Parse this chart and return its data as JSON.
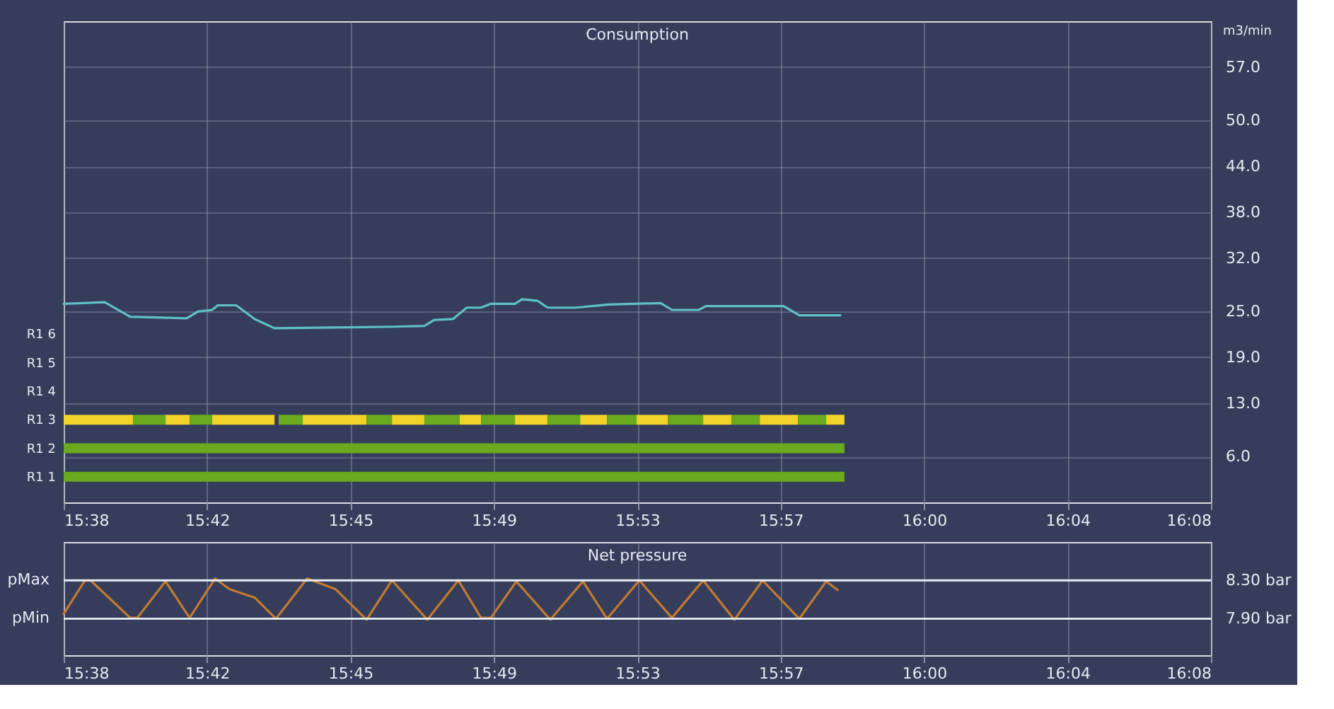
{
  "chart_data": [
    {
      "type": "line",
      "title": "Consumption",
      "ylabel": "m3/min",
      "grid": true,
      "xlim": [
        15.6333,
        16.1333
      ],
      "xticks": [
        {
          "value": 15.6333,
          "label": "15:38"
        },
        {
          "value": 15.6958,
          "label": "15:42"
        },
        {
          "value": 15.7583,
          "label": "15:45"
        },
        {
          "value": 15.8208,
          "label": "15:49"
        },
        {
          "value": 15.8833,
          "label": "15:53"
        },
        {
          "value": 15.9458,
          "label": "15:57"
        },
        {
          "value": 16.0083,
          "label": "16:00"
        },
        {
          "value": 16.0708,
          "label": "16:04"
        },
        {
          "value": 16.1333,
          "label": "16:08"
        }
      ],
      "ylim": [
        0,
        63
      ],
      "yticks": [
        {
          "value": 6,
          "label": "6.0"
        },
        {
          "value": 13,
          "label": "13.0"
        },
        {
          "value": 19,
          "label": "19.0"
        },
        {
          "value": 25,
          "label": "25.0"
        },
        {
          "value": 32,
          "label": "32.0"
        },
        {
          "value": 38,
          "label": "38.0"
        },
        {
          "value": 44,
          "label": "44.0"
        },
        {
          "value": 50,
          "label": "50.0"
        },
        {
          "value": 57,
          "label": "57.0"
        }
      ],
      "x": [
        15.6333,
        15.6512,
        15.6623,
        15.6869,
        15.6919,
        15.698,
        15.7005,
        15.7085,
        15.7166,
        15.7252,
        15.7764,
        15.7905,
        15.7948,
        15.8029,
        15.809,
        15.8152,
        15.8195,
        15.83,
        15.8331,
        15.8398,
        15.8442,
        15.8565,
        15.8707,
        15.8812,
        15.8935,
        15.8984,
        15.9101,
        15.9132,
        15.9471,
        15.9539,
        15.9718
      ],
      "series": [
        {
          "color": "#5fc0c6",
          "values": [
            26.0,
            26.2,
            24.3,
            24.1,
            25.0,
            25.2,
            25.8,
            25.8,
            24.0,
            22.8,
            23.0,
            23.1,
            23.9,
            24.0,
            25.5,
            25.5,
            26.0,
            26.0,
            26.6,
            26.4,
            25.5,
            25.5,
            25.9,
            26.0,
            26.1,
            25.2,
            25.2,
            25.7,
            25.7,
            24.5,
            24.5
          ]
        }
      ]
    },
    {
      "type": "bar",
      "orientation": "horizontal",
      "tick_labels": "y",
      "xlim": [
        15.6333,
        16.1333
      ],
      "categories": [
        "R1 6",
        "R1 5",
        "R1 4",
        "R1 3",
        "R1 2",
        "R1 1"
      ],
      "series": [
        {
          "base": [
            null,
            null,
            null,
            15.6333,
            15.6333,
            15.6333
          ],
          "values": [
            null,
            null,
            null,
            0.0302,
            0.3403,
            0.3403
          ],
          "colors": [
            null,
            null,
            null,
            "#f0d228",
            "#6aaa1e",
            "#6aaa1e"
          ]
        },
        {
          "base": [
            null,
            null,
            null,
            15.6635,
            null,
            null
          ],
          "values": [
            null,
            null,
            null,
            0.0142,
            null,
            null
          ],
          "color": "#6aaa1e"
        },
        {
          "base": [
            null,
            null,
            null,
            15.6777,
            null,
            null
          ],
          "values": [
            null,
            null,
            null,
            0.0105,
            null,
            null
          ],
          "color": "#f0d228"
        },
        {
          "base": [
            null,
            null,
            null,
            15.6882,
            null,
            null
          ],
          "values": [
            null,
            null,
            null,
            0.0098,
            null,
            null
          ],
          "color": "#6aaa1e"
        },
        {
          "base": [
            null,
            null,
            null,
            15.698,
            null,
            null
          ],
          "values": [
            null,
            null,
            null,
            0.0272,
            null,
            null
          ],
          "color": "#f0d228"
        },
        {
          "base": [
            null,
            null,
            null,
            15.727,
            null,
            null
          ],
          "values": [
            null,
            null,
            null,
            0.0105,
            null,
            null
          ],
          "color": "#6aaa1e"
        },
        {
          "base": [
            null,
            null,
            null,
            15.7375,
            null,
            null
          ],
          "values": [
            null,
            null,
            null,
            0.0278,
            null,
            null
          ],
          "color": "#f0d228"
        },
        {
          "base": [
            null,
            null,
            null,
            15.7653,
            null,
            null
          ],
          "values": [
            null,
            null,
            null,
            0.0111,
            null,
            null
          ],
          "color": "#6aaa1e"
        },
        {
          "base": [
            null,
            null,
            null,
            15.7764,
            null,
            null
          ],
          "values": [
            null,
            null,
            null,
            0.0141,
            null,
            null
          ],
          "color": "#f0d228"
        },
        {
          "base": [
            null,
            null,
            null,
            15.7905,
            null,
            null
          ],
          "values": [
            null,
            null,
            null,
            0.0154,
            null,
            null
          ],
          "color": "#6aaa1e"
        },
        {
          "base": [
            null,
            null,
            null,
            15.8059,
            null,
            null
          ],
          "values": [
            null,
            null,
            null,
            0.0093,
            null,
            null
          ],
          "color": "#f0d228"
        },
        {
          "base": [
            null,
            null,
            null,
            15.8152,
            null,
            null
          ],
          "values": [
            null,
            null,
            null,
            0.0148,
            null,
            null
          ],
          "color": "#6aaa1e"
        },
        {
          "base": [
            null,
            null,
            null,
            15.83,
            null,
            null
          ],
          "values": [
            null,
            null,
            null,
            0.0142,
            null,
            null
          ],
          "color": "#f0d228"
        },
        {
          "base": [
            null,
            null,
            null,
            15.8442,
            null,
            null
          ],
          "values": [
            null,
            null,
            null,
            0.0142,
            null,
            null
          ],
          "color": "#6aaa1e"
        },
        {
          "base": [
            null,
            null,
            null,
            15.8584,
            null,
            null
          ],
          "values": [
            null,
            null,
            null,
            0.0117,
            null,
            null
          ],
          "color": "#f0d228"
        },
        {
          "base": [
            null,
            null,
            null,
            15.8701,
            null,
            null
          ],
          "values": [
            null,
            null,
            null,
            0.0129,
            null,
            null
          ],
          "color": "#6aaa1e"
        },
        {
          "base": [
            null,
            null,
            null,
            15.883,
            null,
            null
          ],
          "values": [
            null,
            null,
            null,
            0.0136,
            null,
            null
          ],
          "color": "#f0d228"
        },
        {
          "base": [
            null,
            null,
            null,
            15.8966,
            null,
            null
          ],
          "values": [
            null,
            null,
            null,
            0.0154,
            null,
            null
          ],
          "color": "#6aaa1e"
        },
        {
          "base": [
            null,
            null,
            null,
            15.912,
            null,
            null
          ],
          "values": [
            null,
            null,
            null,
            0.0123,
            null,
            null
          ],
          "color": "#f0d228"
        },
        {
          "base": [
            null,
            null,
            null,
            15.9243,
            null,
            null
          ],
          "values": [
            null,
            null,
            null,
            0.0124,
            null,
            null
          ],
          "color": "#6aaa1e"
        },
        {
          "base": [
            null,
            null,
            null,
            15.9367,
            null,
            null
          ],
          "values": [
            null,
            null,
            null,
            0.0166,
            null,
            null
          ],
          "color": "#f0d228"
        },
        {
          "base": [
            null,
            null,
            null,
            15.9533,
            null,
            null
          ],
          "values": [
            null,
            null,
            null,
            0.0123,
            null,
            null
          ],
          "color": "#6aaa1e"
        },
        {
          "base": [
            null,
            null,
            null,
            15.9656,
            null,
            null
          ],
          "values": [
            null,
            null,
            null,
            0.008,
            null,
            null
          ],
          "color": "#f0d228"
        }
      ]
    },
    {
      "type": "line",
      "title": "Net pressure",
      "grid": "x",
      "xlim": [
        15.6333,
        16.1333
      ],
      "xticks": [
        {
          "value": 15.6333,
          "label": "15:38"
        },
        {
          "value": 15.6958,
          "label": "15:42"
        },
        {
          "value": 15.7583,
          "label": "15:45"
        },
        {
          "value": 15.8208,
          "label": "15:49"
        },
        {
          "value": 15.8833,
          "label": "15:53"
        },
        {
          "value": 15.9458,
          "label": "15:57"
        },
        {
          "value": 16.0083,
          "label": "16:00"
        },
        {
          "value": 16.0708,
          "label": "16:04"
        },
        {
          "value": 16.1333,
          "label": "16:08"
        }
      ],
      "ylim": [
        7.52,
        8.7
      ],
      "yticks": [
        {
          "value": 8.3,
          "label": "8.30 bar"
        },
        {
          "value": 7.9,
          "label": "7.90 bar"
        }
      ],
      "ref_lines": [
        {
          "axis": "y",
          "value": 8.3,
          "label": "pMax",
          "color": "#e8ecf4"
        },
        {
          "axis": "y",
          "value": 7.9,
          "label": "pMin",
          "color": "#e8ecf4"
        }
      ],
      "x": [
        15.6333,
        15.6426,
        15.645,
        15.6623,
        15.6654,
        15.6777,
        15.6882,
        15.6993,
        15.7055,
        15.7166,
        15.7258,
        15.7394,
        15.7517,
        15.7653,
        15.7764,
        15.7918,
        15.8053,
        15.8152,
        15.8195,
        15.8306,
        15.8454,
        15.8596,
        15.8701,
        15.8842,
        15.8984,
        15.912,
        15.9256,
        15.9379,
        15.9539,
        15.9656,
        15.9706
      ],
      "series": [
        {
          "color": "#c27a32",
          "values": [
            7.95,
            8.3,
            8.3,
            7.91,
            7.91,
            8.29,
            7.91,
            8.32,
            8.21,
            8.12,
            7.9,
            8.32,
            8.21,
            7.89,
            8.3,
            7.89,
            8.3,
            7.91,
            7.91,
            8.29,
            7.89,
            8.29,
            7.9,
            8.3,
            7.91,
            8.3,
            7.89,
            8.3,
            7.9,
            8.29,
            8.2
          ]
        }
      ]
    }
  ]
}
